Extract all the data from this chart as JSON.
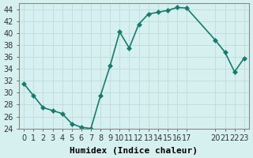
{
  "x": [
    0,
    1,
    2,
    3,
    4,
    5,
    6,
    7,
    8,
    9,
    10,
    11,
    12,
    13,
    14,
    15,
    16,
    17,
    20,
    21,
    22,
    23
  ],
  "y": [
    31.5,
    29.5,
    27.5,
    27.0,
    26.5,
    24.8,
    24.2,
    24.0,
    29.5,
    34.5,
    40.2,
    37.5,
    41.5,
    43.2,
    43.5,
    43.8,
    44.3,
    44.2,
    38.8,
    36.8,
    33.5,
    35.8
  ],
  "line_color": "#1a7a6e",
  "marker_color": "#1a7a6e",
  "bg_color": "#d6f0f0",
  "grid_color": "#c0dede",
  "xlabel": "Humidex (Indice chaleur)",
  "xlim": [
    -0.5,
    23.5
  ],
  "ylim": [
    24,
    45
  ],
  "xtick_positions": [
    0,
    1,
    2,
    3,
    4,
    5,
    6,
    7,
    8,
    9,
    10,
    11,
    12,
    13,
    14,
    15,
    16,
    17,
    20,
    21,
    22,
    23
  ],
  "xtick_labels": [
    "0",
    "1",
    "2",
    "3",
    "4",
    "5",
    "6",
    "7",
    "8",
    "9",
    "10",
    "11",
    "12",
    "13",
    "14",
    "15",
    "16",
    "17",
    "20",
    "21",
    "22",
    "23"
  ],
  "ytick_positions": [
    24,
    26,
    28,
    30,
    32,
    34,
    36,
    38,
    40,
    42,
    44
  ],
  "ytick_labels": [
    "24",
    "26",
    "28",
    "30",
    "32",
    "34",
    "36",
    "38",
    "40",
    "42",
    "44"
  ],
  "xlabel_fontsize": 8,
  "tick_fontsize": 7,
  "marker_size": 3,
  "line_width": 1.2
}
